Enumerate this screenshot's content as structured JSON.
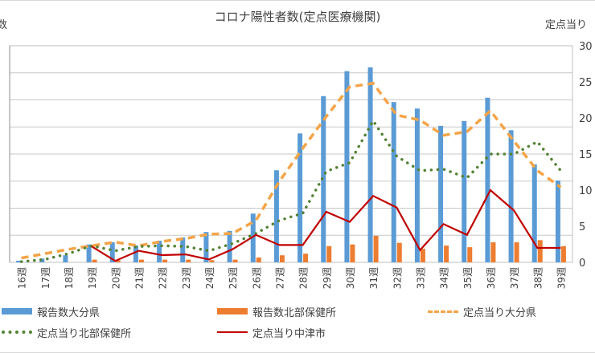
{
  "chart_data": {
    "type": "bar",
    "title": "コロナ陽性者数(定点医療機関)",
    "ylabel_left": "数",
    "ylabel_right": "定点当り",
    "xlabel": "",
    "categories": [
      "16週",
      "17週",
      "18週",
      "19週",
      "20週",
      "21週",
      "22週",
      "23週",
      "24週",
      "25週",
      "26週",
      "27週",
      "28週",
      "29週",
      "30週",
      "31週",
      "32週",
      "33週",
      "34週",
      "35週",
      "36週",
      "37週",
      "38週",
      "39週"
    ],
    "y_left": {
      "range": [
        0,
        400
      ],
      "gridlines": 8,
      "tick_labels_visible": false
    },
    "y_right": {
      "range": [
        0,
        30
      ],
      "ticks": [
        0,
        5,
        10,
        15,
        20,
        25,
        30
      ],
      "tick_labels": [
        "0",
        "5",
        "10",
        "15",
        "20",
        "25",
        "30"
      ]
    },
    "grid": true,
    "legend_position": "bottom",
    "series": [
      {
        "name": "報告数大分県",
        "type": "bar",
        "axis": "left",
        "color": "#5b9bd5",
        "values": [
          3,
          7,
          13,
          33,
          37,
          31,
          40,
          46,
          56,
          58,
          90,
          170,
          238,
          307,
          353,
          360,
          296,
          284,
          252,
          261,
          304,
          244,
          181,
          151
        ]
      },
      {
        "name": "報告数北部保健所",
        "type": "bar",
        "axis": "left",
        "color": "#ed7d31",
        "values": [
          0,
          0,
          0,
          5,
          4,
          5,
          5,
          5,
          4,
          5,
          9,
          13,
          16,
          30,
          33,
          49,
          36,
          25,
          31,
          28,
          37,
          37,
          41,
          30
        ]
      },
      {
        "name": "定点当り大分県",
        "type": "line",
        "style": "dashed",
        "axis": "right",
        "color": "#f4a448",
        "values": [
          0.6,
          1.2,
          1.8,
          2.3,
          2.8,
          2.3,
          2.9,
          3.3,
          3.9,
          4.0,
          5.8,
          11.2,
          15.8,
          20.2,
          24.3,
          24.8,
          20.4,
          19.7,
          17.6,
          18.1,
          21.0,
          16.8,
          12.7,
          10.4
        ]
      },
      {
        "name": "定点当り北部保健所",
        "type": "line",
        "style": "dotted",
        "axis": "right",
        "color": "#548235",
        "values": [
          0.1,
          0.4,
          1.2,
          2.3,
          1.6,
          2.2,
          2.3,
          2.2,
          1.6,
          2.6,
          4.0,
          5.8,
          6.8,
          12.6,
          13.8,
          19.6,
          14.7,
          12.7,
          12.9,
          11.7,
          15.0,
          15.0,
          16.7,
          12.7
        ]
      },
      {
        "name": "定点当り中津市",
        "type": "line",
        "style": "solid",
        "axis": "right",
        "color": "#c00000",
        "values": [
          null,
          null,
          null,
          2.2,
          0.2,
          1.6,
          1.0,
          1.1,
          0.4,
          1.8,
          3.8,
          2.4,
          2.4,
          7.0,
          5.6,
          9.2,
          7.6,
          1.7,
          5.3,
          3.8,
          10.0,
          7.2,
          2.0,
          2.0
        ]
      }
    ]
  }
}
